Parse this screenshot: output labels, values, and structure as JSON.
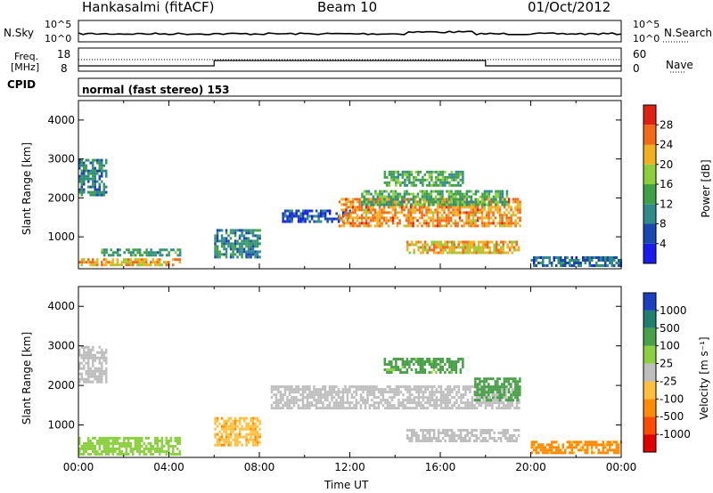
{
  "header": {
    "station": "Hankasalmi (fitACF)",
    "beam": "Beam 10",
    "date": "01/Oct/2012"
  },
  "sky_panel": {
    "left_label": "N.Sky",
    "right_label": "N.Search",
    "ticks_left": [
      "10^5",
      "10^0"
    ],
    "ticks_right": [
      "10^5",
      "10^0"
    ]
  },
  "freq_panel": {
    "left_label_line1": "Freq.",
    "left_label_line2": "[MHz]",
    "ticks_left": [
      "18",
      "8"
    ],
    "ticks_right": [
      "60",
      "0"
    ],
    "right_label": "Nave"
  },
  "cpid": {
    "label": "CPID",
    "mode": "normal (fast stereo) 153"
  },
  "time_axis": {
    "title": "Time UT",
    "ticks": [
      "00:00",
      "04:00",
      "08:00",
      "12:00",
      "16:00",
      "20:00",
      "00:00"
    ]
  },
  "power_colorbar": {
    "title": "Power [dB]",
    "colors": [
      "#1a1aee",
      "#1a48b0",
      "#2f8a8a",
      "#3fa048",
      "#8ccf3a",
      "#f0b020",
      "#f06a1a",
      "#e02010"
    ],
    "labels": [
      "4",
      "8",
      "12",
      "16",
      "20",
      "24",
      "28"
    ]
  },
  "velocity_colorbar": {
    "title": "Velocity [m s⁻¹]",
    "colors": [
      "#e00000",
      "#ff4a00",
      "#ff8c00",
      "#ffc040",
      "#bebebe",
      "#8ad040",
      "#48a048",
      "#208070",
      "#1a3fc0"
    ],
    "labels": [
      "-1000",
      "-500",
      "-100",
      "-25",
      "25",
      "100",
      "500",
      "1000"
    ]
  },
  "chart_data": [
    {
      "type": "heatmap",
      "title": "Power [dB]",
      "xlabel": "Time UT",
      "ylabel": "Slant Range [km]",
      "xlim": [
        0,
        24
      ],
      "ylim": [
        180,
        4500
      ],
      "yticks": [
        1000,
        2000,
        3000,
        4000
      ],
      "regions": [
        {
          "t0": 0.0,
          "t1": 1.2,
          "r0": 2100,
          "r1": 3000,
          "level": 10
        },
        {
          "t0": 0.0,
          "t1": 4.5,
          "r0": 250,
          "r1": 450,
          "level": 22
        },
        {
          "t0": 1.0,
          "t1": 4.5,
          "r0": 500,
          "r1": 700,
          "level": 12
        },
        {
          "t0": 6.0,
          "t1": 8.0,
          "r0": 500,
          "r1": 1200,
          "level": 10
        },
        {
          "t0": 9.0,
          "t1": 12.0,
          "r0": 1400,
          "r1": 1700,
          "level": 6
        },
        {
          "t0": 11.5,
          "t1": 19.5,
          "r0": 1300,
          "r1": 2000,
          "level": 24
        },
        {
          "t0": 12.5,
          "t1": 19.0,
          "r0": 1800,
          "r1": 2200,
          "level": 14
        },
        {
          "t0": 13.5,
          "t1": 17.0,
          "r0": 2300,
          "r1": 2700,
          "level": 14
        },
        {
          "t0": 14.5,
          "t1": 19.5,
          "r0": 600,
          "r1": 900,
          "level": 22
        },
        {
          "t0": 20.0,
          "t1": 24.0,
          "r0": 250,
          "r1": 500,
          "level": 8
        }
      ]
    },
    {
      "type": "heatmap",
      "title": "Velocity [m s⁻¹]",
      "xlabel": "Time UT",
      "ylabel": "Slant Range [km]",
      "xlim": [
        0,
        24
      ],
      "ylim": [
        180,
        4500
      ],
      "yticks": [
        1000,
        2000,
        3000,
        4000
      ],
      "regions": [
        {
          "t0": 0.0,
          "t1": 1.2,
          "r0": 2100,
          "r1": 3000,
          "v": 0
        },
        {
          "t0": 0.0,
          "t1": 4.5,
          "r0": 250,
          "r1": 700,
          "v": 60
        },
        {
          "t0": 6.0,
          "t1": 8.0,
          "r0": 500,
          "r1": 1200,
          "v": -80
        },
        {
          "t0": 8.5,
          "t1": 19.5,
          "r0": 1400,
          "r1": 2000,
          "v": 0
        },
        {
          "t0": 13.5,
          "t1": 17.0,
          "r0": 2300,
          "r1": 2700,
          "v": 150
        },
        {
          "t0": 17.5,
          "t1": 19.5,
          "r0": 1600,
          "r1": 2200,
          "v": 300
        },
        {
          "t0": 14.5,
          "t1": 19.5,
          "r0": 600,
          "r1": 900,
          "v": 0
        },
        {
          "t0": 20.0,
          "t1": 24.0,
          "r0": 300,
          "r1": 600,
          "v": -150
        }
      ]
    }
  ]
}
